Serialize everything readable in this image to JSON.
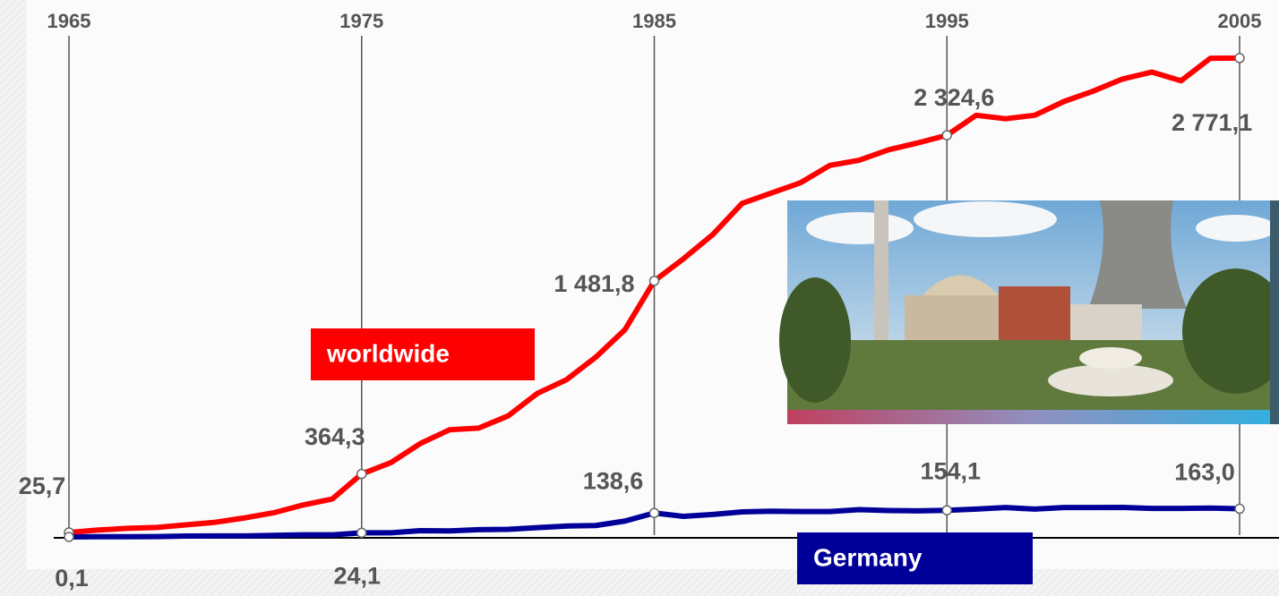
{
  "chart_data": {
    "type": "line",
    "x": [
      1965,
      1966,
      1967,
      1968,
      1969,
      1970,
      1971,
      1972,
      1973,
      1974,
      1975,
      1976,
      1977,
      1978,
      1979,
      1980,
      1981,
      1982,
      1983,
      1984,
      1985,
      1986,
      1987,
      1988,
      1989,
      1990,
      1991,
      1992,
      1993,
      1994,
      1995,
      1996,
      1997,
      1998,
      1999,
      2000,
      2001,
      2002,
      2003,
      2004,
      2005
    ],
    "xlim": [
      1965,
      2005
    ],
    "xticks": [
      1965,
      1975,
      1985,
      1995,
      2005
    ],
    "ylim": [
      0,
      2900
    ],
    "series": [
      {
        "name": "worldwide",
        "color": "#ff0000",
        "values": [
          25.7,
          40,
          50,
          55,
          70,
          85,
          110,
          140,
          185,
          220,
          364.3,
          430,
          540,
          620,
          630,
          700,
          830,
          910,
          1040,
          1200,
          1481.8,
          1610,
          1750,
          1930,
          1990,
          2050,
          2150,
          2180,
          2240,
          2280,
          2324.6,
          2440,
          2420,
          2440,
          2520,
          2580,
          2650,
          2690,
          2640,
          2770,
          2771.1
        ],
        "value_labels": [
          "25,7",
          null,
          null,
          null,
          null,
          null,
          null,
          null,
          null,
          null,
          "364,3",
          null,
          null,
          null,
          null,
          null,
          null,
          null,
          null,
          null,
          "1 481,8",
          null,
          null,
          null,
          null,
          null,
          null,
          null,
          null,
          null,
          "2 324,6",
          null,
          null,
          null,
          null,
          null,
          null,
          null,
          null,
          null,
          "2 771,1"
        ]
      },
      {
        "name": "Germany",
        "color": "#000099",
        "values": [
          0.1,
          1,
          1.5,
          2,
          5,
          6,
          6,
          9,
          12,
          12,
          24.1,
          24,
          36,
          35,
          42,
          44,
          54,
          63,
          66,
          92,
          138.6,
          119,
          130,
          145,
          149,
          147,
          147,
          158,
          153,
          151,
          154.1,
          161,
          170,
          161,
          170,
          170,
          171,
          165,
          165,
          167,
          163.0
        ],
        "value_labels": [
          "0,1",
          null,
          null,
          null,
          null,
          null,
          null,
          null,
          null,
          null,
          "24,1",
          null,
          null,
          null,
          null,
          null,
          null,
          null,
          null,
          null,
          "138,6",
          null,
          null,
          null,
          null,
          null,
          null,
          null,
          null,
          null,
          "154,1",
          null,
          null,
          null,
          null,
          null,
          null,
          null,
          null,
          null,
          "163,0"
        ]
      }
    ]
  }
}
